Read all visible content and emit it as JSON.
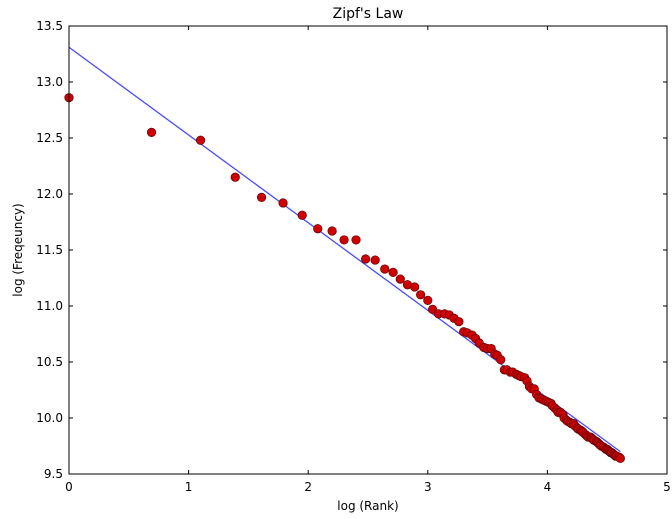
{
  "chart_data": {
    "type": "scatter",
    "title": "Zipf's Law",
    "xlabel": "log (Rank)",
    "ylabel": "log (Freqeuncy)",
    "xlim": [
      0,
      5
    ],
    "ylim": [
      9.5,
      13.5
    ],
    "xticks": [
      "0",
      "1",
      "2",
      "3",
      "4",
      "5"
    ],
    "yticks": [
      "9.5",
      "10.0",
      "10.5",
      "11.0",
      "11.5",
      "12.0",
      "12.5",
      "13.0",
      "13.5"
    ],
    "grid": false,
    "colors": {
      "points": "#cc0000",
      "point_edge": "#550000",
      "fit_line": "#4b4bff"
    },
    "fit_line": {
      "x": [
        0,
        4.61
      ],
      "y": [
        13.31,
        9.7
      ]
    },
    "points": {
      "x": [
        0,
        0.69,
        1.1,
        1.39,
        1.61,
        1.79,
        1.95,
        2.08,
        2.2,
        2.3,
        2.4,
        2.48,
        2.56,
        2.64,
        2.71,
        2.77,
        2.83,
        2.89,
        2.94,
        3.0,
        3.04,
        3.09,
        3.14,
        3.18,
        3.22,
        3.26,
        3.3,
        3.33,
        3.37,
        3.4,
        3.43,
        3.47,
        3.5,
        3.53,
        3.56,
        3.58,
        3.61,
        3.64,
        3.66,
        3.69,
        3.71,
        3.74,
        3.76,
        3.78,
        3.81,
        3.83,
        3.85,
        3.87,
        3.89,
        3.91,
        3.93,
        3.95,
        3.97,
        3.99,
        4.01,
        4.03,
        4.04,
        4.06,
        4.08,
        4.09,
        4.11,
        4.13,
        4.14,
        4.16,
        4.17,
        4.19,
        4.2,
        4.22,
        4.23,
        4.25,
        4.26,
        4.28,
        4.29,
        4.3,
        4.32,
        4.33,
        4.34,
        4.36,
        4.37,
        4.38,
        4.39,
        4.41,
        4.42,
        4.43,
        4.44,
        4.45,
        4.47,
        4.48,
        4.49,
        4.5,
        4.51,
        4.52,
        4.53,
        4.54,
        4.55,
        4.56,
        4.57,
        4.58,
        4.6,
        4.61
      ],
      "y": [
        12.86,
        12.55,
        12.48,
        12.15,
        11.97,
        11.92,
        11.81,
        11.69,
        11.67,
        11.59,
        11.59,
        11.42,
        11.41,
        11.33,
        11.3,
        11.24,
        11.19,
        11.17,
        11.1,
        11.05,
        10.97,
        10.93,
        10.93,
        10.92,
        10.89,
        10.86,
        10.77,
        10.76,
        10.74,
        10.71,
        10.67,
        10.63,
        10.62,
        10.62,
        10.57,
        10.56,
        10.52,
        10.43,
        10.43,
        10.41,
        10.41,
        10.39,
        10.38,
        10.37,
        10.36,
        10.33,
        10.28,
        10.26,
        10.26,
        10.21,
        10.18,
        10.17,
        10.16,
        10.15,
        10.14,
        10.13,
        10.11,
        10.09,
        10.07,
        10.05,
        10.05,
        10.03,
        10.0,
        9.98,
        9.97,
        9.96,
        9.95,
        9.95,
        9.93,
        9.91,
        9.9,
        9.89,
        9.88,
        9.87,
        9.85,
        9.84,
        9.83,
        9.83,
        9.82,
        9.81,
        9.8,
        9.79,
        9.78,
        9.77,
        9.76,
        9.75,
        9.74,
        9.73,
        9.72,
        9.72,
        9.71,
        9.7,
        9.69,
        9.69,
        9.68,
        9.67,
        9.66,
        9.66,
        9.65,
        9.64
      ]
    }
  }
}
